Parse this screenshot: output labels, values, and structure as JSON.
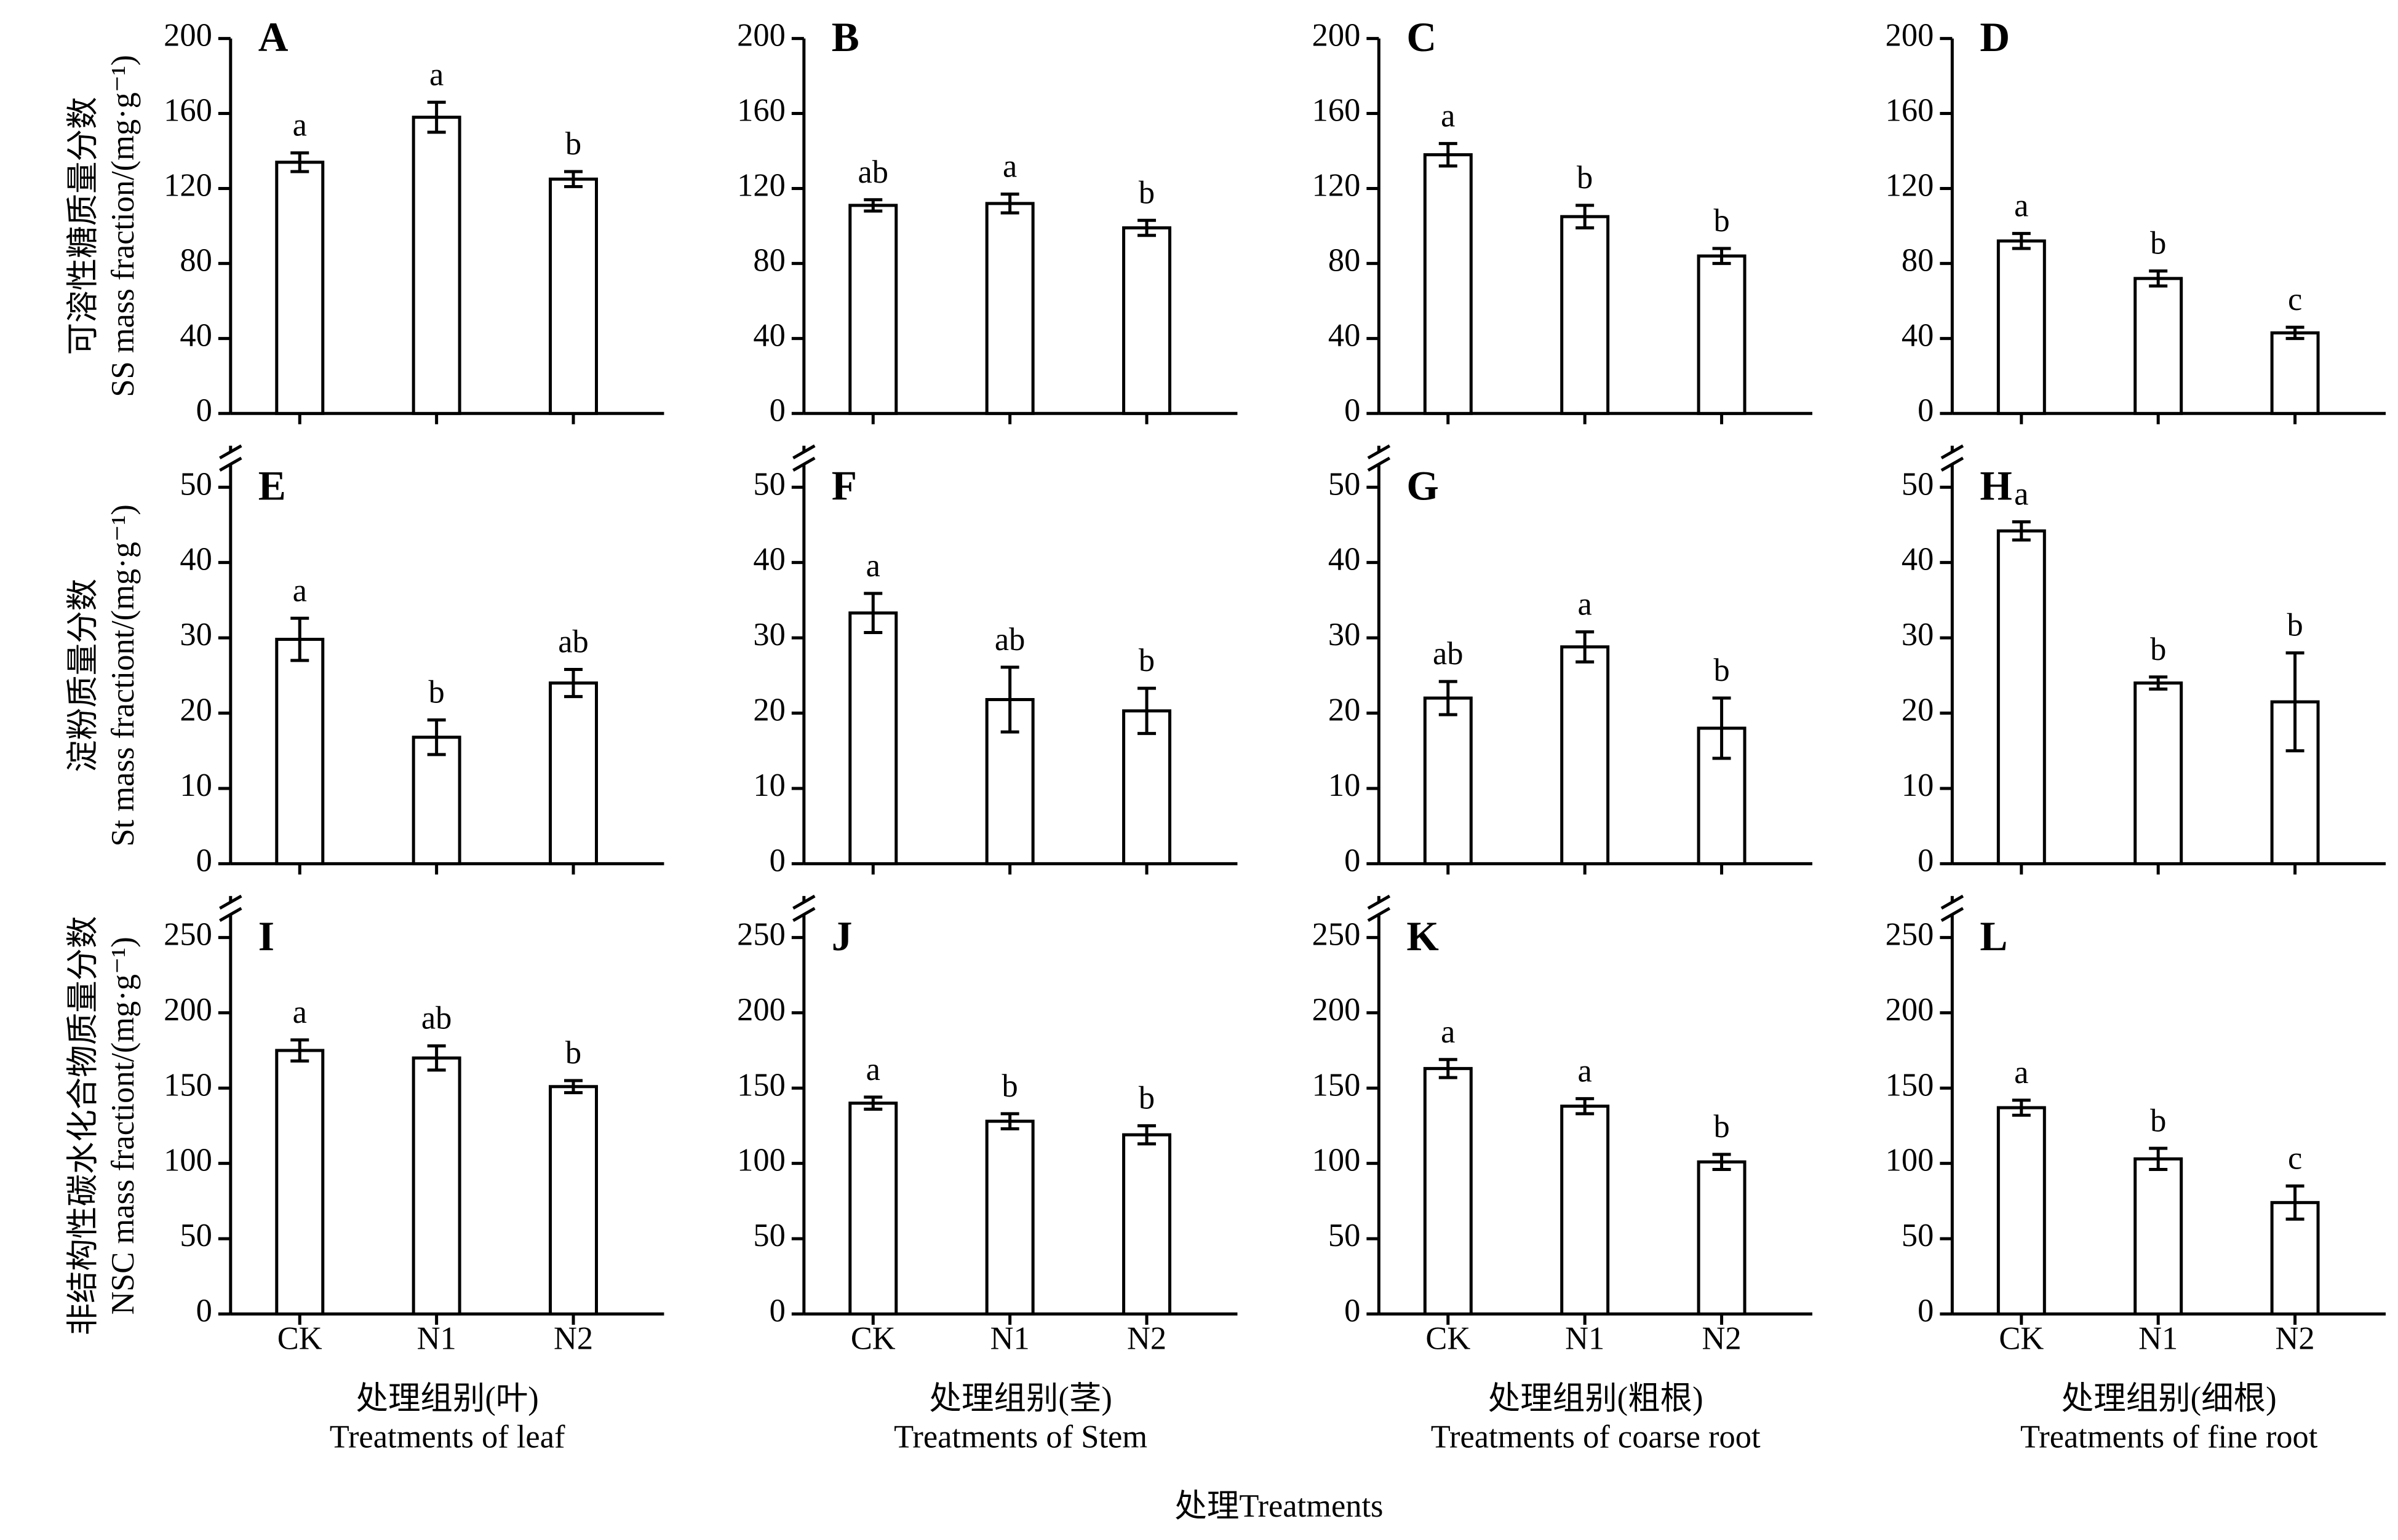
{
  "chart_data": [
    {
      "type": "bar",
      "panel_label": "A",
      "values": [
        134,
        158,
        125
      ],
      "errors": [
        5,
        8,
        4
      ],
      "annotations": [
        "a",
        "a",
        "b"
      ],
      "ylim": [
        0,
        200
      ],
      "yticks": [
        0,
        40,
        80,
        120,
        160,
        200
      ]
    },
    {
      "type": "bar",
      "panel_label": "B",
      "values": [
        111,
        112,
        99
      ],
      "errors": [
        3,
        5,
        4
      ],
      "annotations": [
        "ab",
        "a",
        "b"
      ],
      "ylim": [
        0,
        200
      ],
      "yticks": [
        0,
        40,
        80,
        120,
        160,
        200
      ]
    },
    {
      "type": "bar",
      "panel_label": "C",
      "values": [
        138,
        105,
        84
      ],
      "errors": [
        6,
        6,
        4
      ],
      "annotations": [
        "a",
        "b",
        "b"
      ],
      "ylim": [
        0,
        200
      ],
      "yticks": [
        0,
        40,
        80,
        120,
        160,
        200
      ]
    },
    {
      "type": "bar",
      "panel_label": "D",
      "values": [
        92,
        72,
        43
      ],
      "errors": [
        4,
        4,
        3
      ],
      "annotations": [
        "a",
        "b",
        "c"
      ],
      "ylim": [
        0,
        200
      ],
      "yticks": [
        0,
        40,
        80,
        120,
        160,
        200
      ]
    },
    {
      "type": "bar",
      "panel_label": "E",
      "values": [
        29.8,
        16.8,
        24
      ],
      "errors": [
        2.8,
        2.3,
        1.8
      ],
      "annotations": [
        "a",
        "b",
        "ab"
      ],
      "ylim": [
        0,
        50
      ],
      "yticks": [
        0,
        10,
        20,
        30,
        40,
        50
      ]
    },
    {
      "type": "bar",
      "panel_label": "F",
      "values": [
        33.3,
        21.8,
        20.3
      ],
      "errors": [
        2.6,
        4.3,
        3
      ],
      "annotations": [
        "a",
        "ab",
        "b"
      ],
      "ylim": [
        0,
        50
      ],
      "yticks": [
        0,
        10,
        20,
        30,
        40,
        50
      ]
    },
    {
      "type": "bar",
      "panel_label": "G",
      "values": [
        22,
        28.8,
        18
      ],
      "errors": [
        2.2,
        2,
        4
      ],
      "annotations": [
        "ab",
        "a",
        "b"
      ],
      "ylim": [
        0,
        50
      ],
      "yticks": [
        0,
        10,
        20,
        30,
        40,
        50
      ]
    },
    {
      "type": "bar",
      "panel_label": "H",
      "values": [
        44.2,
        24,
        21.5
      ],
      "errors": [
        1.2,
        0.8,
        6.5
      ],
      "annotations": [
        "a",
        "b",
        "b"
      ],
      "ylim": [
        0,
        50
      ],
      "yticks": [
        0,
        10,
        20,
        30,
        40,
        50
      ]
    },
    {
      "type": "bar",
      "panel_label": "I",
      "categories": [
        "CK",
        "N1",
        "N2"
      ],
      "values": [
        175,
        170,
        151
      ],
      "errors": [
        7,
        8,
        4
      ],
      "annotations": [
        "a",
        "ab",
        "b"
      ],
      "ylim": [
        0,
        250
      ],
      "yticks": [
        0,
        50,
        100,
        150,
        200,
        250
      ]
    },
    {
      "type": "bar",
      "panel_label": "J",
      "categories": [
        "CK",
        "N1",
        "N2"
      ],
      "values": [
        140,
        128,
        119
      ],
      "errors": [
        4,
        5,
        6
      ],
      "annotations": [
        "a",
        "b",
        "b"
      ],
      "ylim": [
        0,
        250
      ],
      "yticks": [
        0,
        50,
        100,
        150,
        200,
        250
      ]
    },
    {
      "type": "bar",
      "panel_label": "K",
      "categories": [
        "CK",
        "N1",
        "N2"
      ],
      "values": [
        163,
        138,
        101
      ],
      "errors": [
        6,
        5,
        5
      ],
      "annotations": [
        "a",
        "a",
        "b"
      ],
      "ylim": [
        0,
        250
      ],
      "yticks": [
        0,
        50,
        100,
        150,
        200,
        250
      ]
    },
    {
      "type": "bar",
      "panel_label": "L",
      "categories": [
        "CK",
        "N1",
        "N2"
      ],
      "values": [
        137,
        103,
        74
      ],
      "errors": [
        5,
        7,
        11
      ],
      "annotations": [
        "a",
        "b",
        "c"
      ],
      "ylim": [
        0,
        250
      ],
      "yticks": [
        0,
        50,
        100,
        150,
        200,
        250
      ]
    }
  ],
  "row_labels": [
    [
      "可溶性糖质量分数",
      "SS mass fraction/(mg·g⁻¹)"
    ],
    [
      "淀粉质量分数",
      "St mass fractiont/(mg·g⁻¹)"
    ],
    [
      "非结构性碳水化合物质量分数",
      "NSC mass fractiont/(mg·g⁻¹)"
    ]
  ],
  "column_labels": [
    [
      "处理组别(叶)",
      "Treatments of leaf"
    ],
    [
      "处理组别(茎)",
      "Treatments of Stem"
    ],
    [
      "处理组别(粗根)",
      "Treatments of coarse root"
    ],
    [
      "处理组别(细根)",
      "Treatments of fine root"
    ]
  ],
  "x_label": "处理Treatments"
}
